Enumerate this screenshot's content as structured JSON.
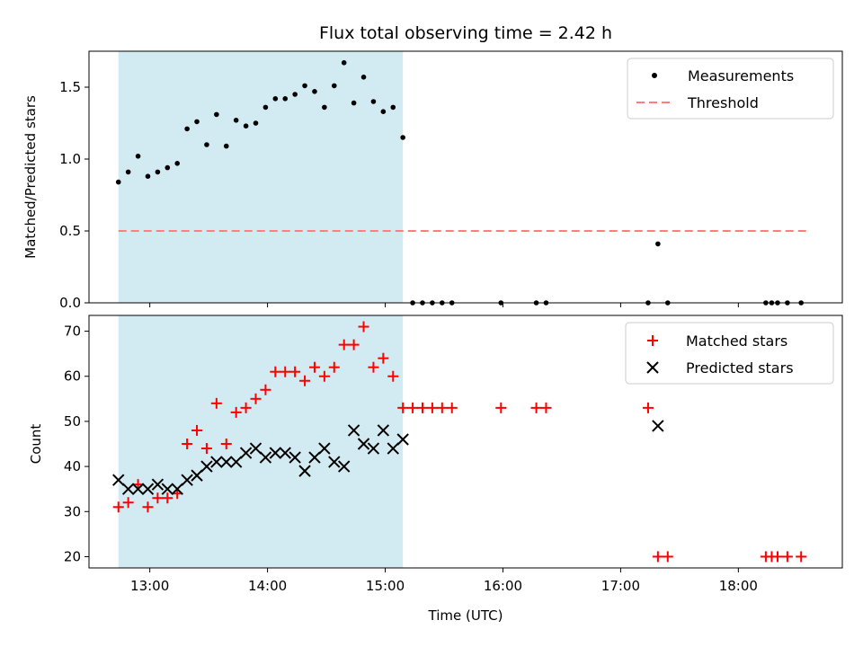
{
  "chart_data": {
    "title": "Flux total observing time = 2.42 h",
    "xlabel": "Time (UTC)",
    "x_ticks": [
      "13:00",
      "14:00",
      "15:00",
      "16:00",
      "17:00",
      "18:00"
    ],
    "x_range": [
      "12:29",
      "18:53"
    ],
    "observing_window": [
      "12:44",
      "15:09"
    ],
    "shade_color": "#add8e6",
    "panels": [
      {
        "type": "scatter",
        "ylabel": "Matched/Predicted stars",
        "ylim": [
          0,
          1.75
        ],
        "y_ticks": [
          "0.0",
          "0.5",
          "1.0",
          "1.5"
        ],
        "legend_position": "upper right",
        "threshold": {
          "name": "Threshold",
          "value": 0.5,
          "x_start": "12:44",
          "x_end": "18:35",
          "color": "#ff7f7f"
        },
        "series": [
          {
            "name": "Measurements",
            "color": "#000000",
            "marker": "dot",
            "points": [
              [
                "12:44",
                0.84
              ],
              [
                "12:49",
                0.91
              ],
              [
                "12:54",
                1.02
              ],
              [
                "12:59",
                0.88
              ],
              [
                "13:04",
                0.91
              ],
              [
                "13:09",
                0.94
              ],
              [
                "13:14",
                0.97
              ],
              [
                "13:19",
                1.21
              ],
              [
                "13:24",
                1.26
              ],
              [
                "13:29",
                1.1
              ],
              [
                "13:34",
                1.31
              ],
              [
                "13:39",
                1.09
              ],
              [
                "13:44",
                1.27
              ],
              [
                "13:49",
                1.23
              ],
              [
                "13:54",
                1.25
              ],
              [
                "13:59",
                1.36
              ],
              [
                "14:04",
                1.42
              ],
              [
                "14:09",
                1.42
              ],
              [
                "14:14",
                1.45
              ],
              [
                "14:19",
                1.51
              ],
              [
                "14:24",
                1.47
              ],
              [
                "14:29",
                1.36
              ],
              [
                "14:34",
                1.51
              ],
              [
                "14:39",
                1.67
              ],
              [
                "14:44",
                1.39
              ],
              [
                "14:49",
                1.57
              ],
              [
                "14:54",
                1.4
              ],
              [
                "14:59",
                1.33
              ],
              [
                "15:04",
                1.36
              ],
              [
                "15:09",
                1.15
              ],
              [
                "15:14",
                0.0
              ],
              [
                "15:19",
                0.0
              ],
              [
                "15:24",
                0.0
              ],
              [
                "15:29",
                0.0
              ],
              [
                "15:34",
                0.0
              ],
              [
                "15:59",
                0.0
              ],
              [
                "16:17",
                0.0
              ],
              [
                "16:22",
                0.0
              ],
              [
                "17:14",
                0.0
              ],
              [
                "17:19",
                0.41
              ],
              [
                "17:24",
                0.0
              ],
              [
                "18:14",
                0.0
              ],
              [
                "18:17",
                0.0
              ],
              [
                "18:20",
                0.0
              ],
              [
                "18:25",
                0.0
              ],
              [
                "18:32",
                0.0
              ]
            ]
          }
        ]
      },
      {
        "type": "scatter",
        "ylabel": "Count",
        "ylim": [
          17.5,
          73.5
        ],
        "y_ticks": [
          "20",
          "30",
          "40",
          "50",
          "60",
          "70"
        ],
        "legend_position": "upper right",
        "series": [
          {
            "name": "Matched stars",
            "color": "#ff0000",
            "marker": "plus",
            "points": [
              [
                "12:44",
                31
              ],
              [
                "12:49",
                32
              ],
              [
                "12:54",
                36
              ],
              [
                "12:59",
                31
              ],
              [
                "13:04",
                33
              ],
              [
                "13:09",
                33
              ],
              [
                "13:14",
                34
              ],
              [
                "13:19",
                45
              ],
              [
                "13:24",
                48
              ],
              [
                "13:29",
                44
              ],
              [
                "13:34",
                54
              ],
              [
                "13:39",
                45
              ],
              [
                "13:44",
                52
              ],
              [
                "13:49",
                53
              ],
              [
                "13:54",
                55
              ],
              [
                "13:59",
                57
              ],
              [
                "14:04",
                61
              ],
              [
                "14:09",
                61
              ],
              [
                "14:14",
                61
              ],
              [
                "14:19",
                59
              ],
              [
                "14:24",
                62
              ],
              [
                "14:29",
                60
              ],
              [
                "14:34",
                62
              ],
              [
                "14:39",
                67
              ],
              [
                "14:44",
                67
              ],
              [
                "14:49",
                71
              ],
              [
                "14:54",
                62
              ],
              [
                "14:59",
                64
              ],
              [
                "15:04",
                60
              ],
              [
                "15:09",
                53
              ],
              [
                "15:14",
                53
              ],
              [
                "15:19",
                53
              ],
              [
                "15:24",
                53
              ],
              [
                "15:29",
                53
              ],
              [
                "15:34",
                53
              ],
              [
                "15:59",
                53
              ],
              [
                "16:17",
                53
              ],
              [
                "16:22",
                53
              ],
              [
                "17:14",
                53
              ],
              [
                "17:19",
                20
              ],
              [
                "17:24",
                20
              ],
              [
                "18:14",
                20
              ],
              [
                "18:17",
                20
              ],
              [
                "18:20",
                20
              ],
              [
                "18:25",
                20
              ],
              [
                "18:32",
                20
              ]
            ]
          },
          {
            "name": "Predicted stars",
            "color": "#000000",
            "marker": "x",
            "points": [
              [
                "12:44",
                37
              ],
              [
                "12:49",
                35
              ],
              [
                "12:54",
                35
              ],
              [
                "12:59",
                35
              ],
              [
                "13:04",
                36
              ],
              [
                "13:09",
                35
              ],
              [
                "13:14",
                35
              ],
              [
                "13:19",
                37
              ],
              [
                "13:24",
                38
              ],
              [
                "13:29",
                40
              ],
              [
                "13:34",
                41
              ],
              [
                "13:39",
                41
              ],
              [
                "13:44",
                41
              ],
              [
                "13:49",
                43
              ],
              [
                "13:54",
                44
              ],
              [
                "13:59",
                42
              ],
              [
                "14:04",
                43
              ],
              [
                "14:09",
                43
              ],
              [
                "14:14",
                42
              ],
              [
                "14:19",
                39
              ],
              [
                "14:24",
                42
              ],
              [
                "14:29",
                44
              ],
              [
                "14:34",
                41
              ],
              [
                "14:39",
                40
              ],
              [
                "14:44",
                48
              ],
              [
                "14:49",
                45
              ],
              [
                "14:54",
                44
              ],
              [
                "14:59",
                48
              ],
              [
                "15:04",
                44
              ],
              [
                "15:09",
                46
              ],
              [
                "17:19",
                49
              ]
            ]
          }
        ]
      }
    ]
  }
}
